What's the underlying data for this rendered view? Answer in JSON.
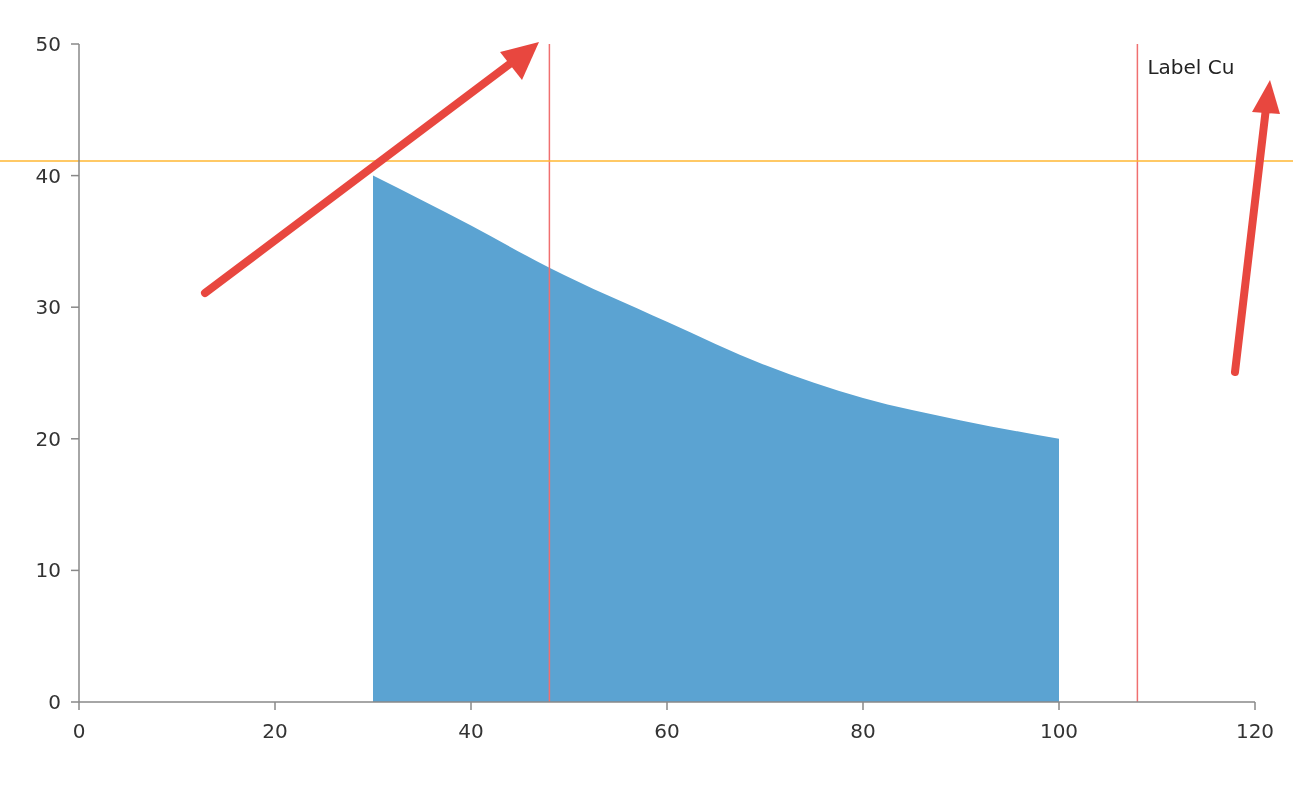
{
  "chart_data": {
    "type": "area",
    "x": [
      30,
      40,
      48,
      60,
      70,
      80,
      90,
      100
    ],
    "series": [
      {
        "color": "#5ba3d2",
        "values": [
          40,
          36.2,
          33,
          28.9,
          25.6,
          23.1,
          21.4,
          20
        ]
      }
    ],
    "xlim": [
      0,
      120
    ],
    "xticks": [
      0,
      20,
      40,
      60,
      80,
      100,
      120
    ],
    "ylim": [
      0,
      50
    ],
    "yticks": [
      0,
      10,
      20,
      30,
      40,
      50
    ],
    "grid": false,
    "ref_lines": [
      {
        "axis": "x",
        "value": 48,
        "color": "#f07070"
      },
      {
        "axis": "x",
        "value": 108,
        "label": "Label Cu",
        "color": "#f07070"
      },
      {
        "axis": "y",
        "value": 41.1,
        "color": "#ffb733"
      }
    ]
  }
}
